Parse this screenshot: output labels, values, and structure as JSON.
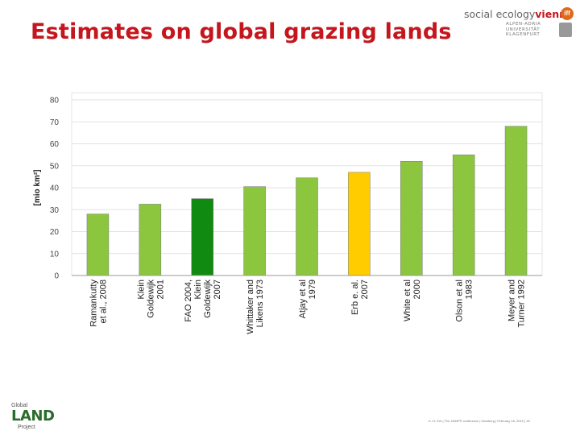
{
  "slide": {
    "title": "Estimates on global grazing lands",
    "footer": "K.-H. Erb | The HANPP conference | Hamburg | February 16, 2010 | 18"
  },
  "logos": {
    "svv_brand": "social ecology",
    "svv_city": "vienna",
    "svv_mark": "iff",
    "svv_university": "ALPEN-ADRIA\nUNIVERSITÄT\nKLAGENFURT",
    "glp_top": "Global",
    "glp_main": "LAND",
    "glp_bottom": "Project"
  },
  "colors": {
    "title": "#c4161c",
    "green": "#8cc63f",
    "dark_green": "#118a11",
    "yellow": "#ffcc00"
  },
  "chart_data": {
    "type": "bar",
    "title": "",
    "xlabel": "",
    "ylabel": "[mio km²]",
    "ylim": [
      0,
      80
    ],
    "yticks": [
      0,
      10,
      20,
      30,
      40,
      50,
      60,
      70,
      80
    ],
    "grid": true,
    "categories": [
      [
        "Ramankutty",
        "et al., 2008"
      ],
      [
        "Klein",
        "Goldewijk",
        "2001"
      ],
      [
        "FAO 2004,",
        "Klein",
        "Goldewijk",
        "2007"
      ],
      [
        "Whittaker and",
        "Likens 1973"
      ],
      [
        "Atjay et al",
        "1979"
      ],
      [
        "Erb e. al.",
        "2007"
      ],
      [
        "White et al",
        "2000"
      ],
      [
        "Olson et al",
        "1983"
      ],
      [
        "Meyer and",
        "Turner 1992"
      ]
    ],
    "values": [
      28,
      32.5,
      35,
      40.5,
      44.5,
      47,
      52,
      55,
      68
    ],
    "bar_colors": [
      "green",
      "green",
      "dark_green",
      "green",
      "green",
      "yellow",
      "green",
      "green",
      "green"
    ]
  }
}
